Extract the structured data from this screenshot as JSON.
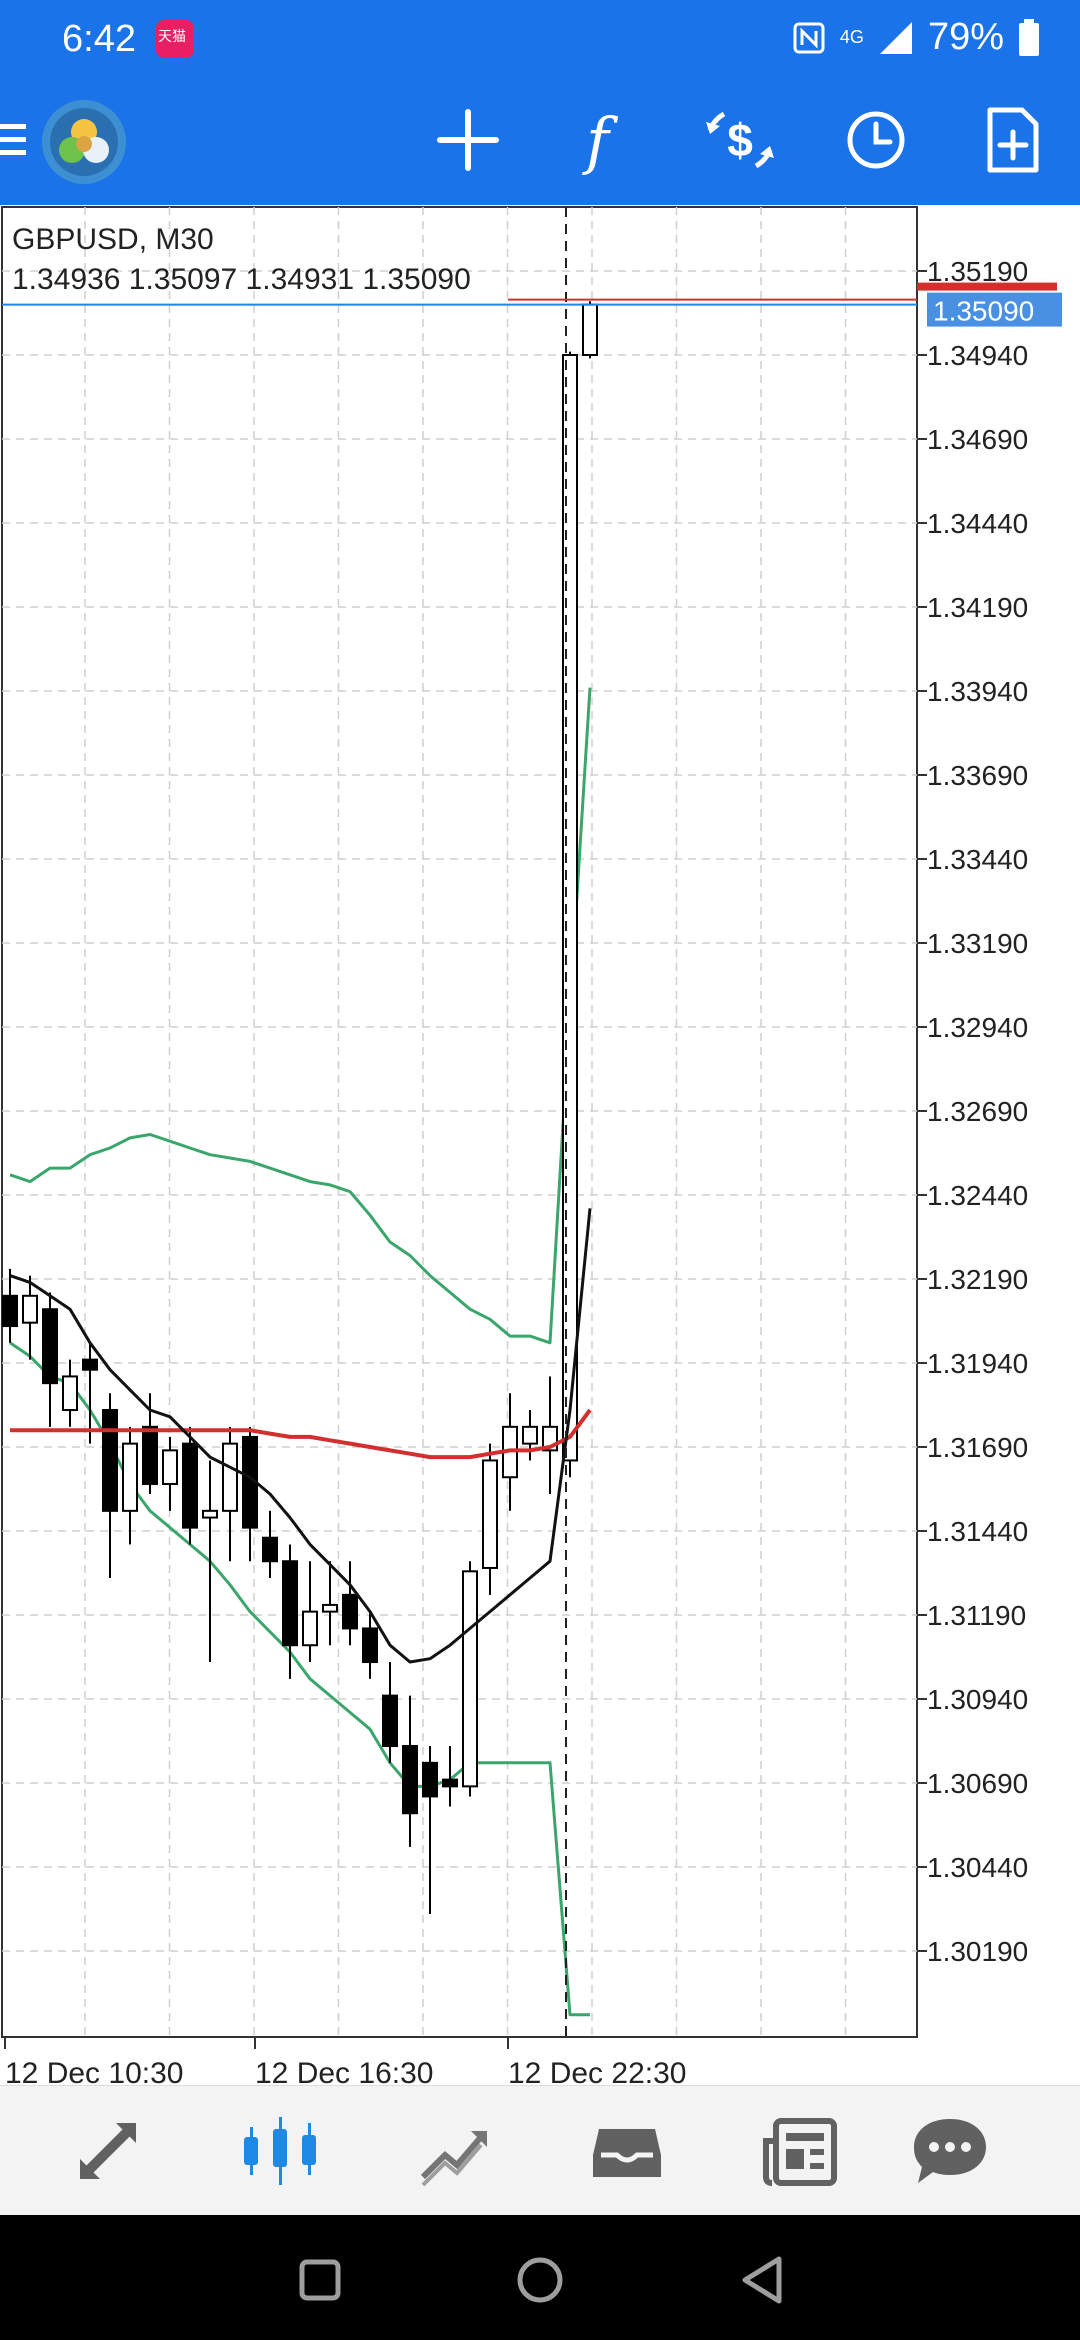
{
  "status_bar": {
    "time": "6:42",
    "app_badge_text": "天猫",
    "network": "4G",
    "battery": "79%"
  },
  "toolbar": {
    "menu_icon": "menu-icon",
    "buttons": [
      "crosshair-icon",
      "indicators-icon",
      "trade-icon",
      "timeframe-icon",
      "templates-icon"
    ],
    "indicators_label": "f"
  },
  "chart": {
    "symbol": "GBPUSD, M30",
    "ohlc": "1.34936 1.35097 1.34931 1.35090",
    "current_price": "1.35090",
    "colors": {
      "ma_red": "#d32f2f",
      "ma_black": "#111111",
      "bands": "#3aa66b",
      "bid_line": "#1e88e5",
      "price_badge": "#4a90e2"
    }
  },
  "chart_data": {
    "type": "candlestick",
    "price_ticks": [
      "1.35190",
      "1.34940",
      "1.34690",
      "1.34440",
      "1.34190",
      "1.33940",
      "1.33690",
      "1.33440",
      "1.33190",
      "1.32940",
      "1.32690",
      "1.32440",
      "1.32190",
      "1.31940",
      "1.31690",
      "1.31440",
      "1.31190",
      "1.30940",
      "1.30690",
      "1.30440",
      "1.30190"
    ],
    "time_labels": [
      "12 Dec 10:30",
      "12 Dec 16:30",
      "12 Dec 22:30"
    ],
    "candles": [
      {
        "o": 1.3214,
        "h": 1.3222,
        "l": 1.32,
        "c": 1.3205
      },
      {
        "o": 1.3206,
        "h": 1.322,
        "l": 1.3195,
        "c": 1.3214
      },
      {
        "o": 1.321,
        "h": 1.3215,
        "l": 1.3175,
        "c": 1.3188
      },
      {
        "o": 1.318,
        "h": 1.3195,
        "l": 1.3175,
        "c": 1.319
      },
      {
        "o": 1.3195,
        "h": 1.32,
        "l": 1.317,
        "c": 1.3192
      },
      {
        "o": 1.318,
        "h": 1.3185,
        "l": 1.313,
        "c": 1.315
      },
      {
        "o": 1.315,
        "h": 1.3175,
        "l": 1.314,
        "c": 1.317
      },
      {
        "o": 1.3175,
        "h": 1.3185,
        "l": 1.3155,
        "c": 1.3158
      },
      {
        "o": 1.3158,
        "h": 1.3172,
        "l": 1.315,
        "c": 1.3168
      },
      {
        "o": 1.317,
        "h": 1.3175,
        "l": 1.314,
        "c": 1.3145
      },
      {
        "o": 1.3148,
        "h": 1.3165,
        "l": 1.3105,
        "c": 1.315
      },
      {
        "o": 1.315,
        "h": 1.3175,
        "l": 1.3135,
        "c": 1.317
      },
      {
        "o": 1.3172,
        "h": 1.3175,
        "l": 1.3135,
        "c": 1.3145
      },
      {
        "o": 1.3142,
        "h": 1.315,
        "l": 1.313,
        "c": 1.3135
      },
      {
        "o": 1.3135,
        "h": 1.314,
        "l": 1.31,
        "c": 1.311
      },
      {
        "o": 1.311,
        "h": 1.3135,
        "l": 1.3105,
        "c": 1.312
      },
      {
        "o": 1.312,
        "h": 1.3135,
        "l": 1.311,
        "c": 1.3122
      },
      {
        "o": 1.3125,
        "h": 1.3135,
        "l": 1.311,
        "c": 1.3115
      },
      {
        "o": 1.3115,
        "h": 1.312,
        "l": 1.31,
        "c": 1.3105
      },
      {
        "o": 1.3095,
        "h": 1.3105,
        "l": 1.3075,
        "c": 1.308
      },
      {
        "o": 1.308,
        "h": 1.3095,
        "l": 1.305,
        "c": 1.306
      },
      {
        "o": 1.3075,
        "h": 1.308,
        "l": 1.303,
        "c": 1.3065
      },
      {
        "o": 1.307,
        "h": 1.308,
        "l": 1.3062,
        "c": 1.3068
      },
      {
        "o": 1.3068,
        "h": 1.3135,
        "l": 1.3065,
        "c": 1.3132
      },
      {
        "o": 1.3133,
        "h": 1.317,
        "l": 1.3125,
        "c": 1.3165
      },
      {
        "o": 1.316,
        "h": 1.3185,
        "l": 1.315,
        "c": 1.3175
      },
      {
        "o": 1.317,
        "h": 1.318,
        "l": 1.3165,
        "c": 1.3175
      },
      {
        "o": 1.3168,
        "h": 1.319,
        "l": 1.3155,
        "c": 1.3175
      },
      {
        "o": 1.3165,
        "h": 1.3495,
        "l": 1.316,
        "c": 1.3494
      },
      {
        "o": 1.3494,
        "h": 1.351,
        "l": 1.3493,
        "c": 1.3509
      }
    ],
    "ma_red": [
      1.3174,
      1.3174,
      1.3174,
      1.3174,
      1.3174,
      1.3174,
      1.3174,
      1.3174,
      1.3174,
      1.3174,
      1.3174,
      1.3174,
      1.3174,
      1.3173,
      1.3172,
      1.3172,
      1.3171,
      1.317,
      1.3169,
      1.3168,
      1.3167,
      1.3166,
      1.3166,
      1.3166,
      1.3167,
      1.3168,
      1.3168,
      1.3169,
      1.3172,
      1.318
    ],
    "ma_black": [
      1.322,
      1.3218,
      1.3214,
      1.321,
      1.32,
      1.3192,
      1.3186,
      1.318,
      1.3178,
      1.3172,
      1.3166,
      1.3163,
      1.316,
      1.3155,
      1.3148,
      1.314,
      1.3134,
      1.3128,
      1.312,
      1.311,
      1.3105,
      1.3106,
      1.311,
      1.3115,
      1.312,
      1.3125,
      1.313,
      1.3135,
      1.318,
      1.324
    ],
    "band_upper": [
      1.325,
      1.3248,
      1.3252,
      1.3252,
      1.3256,
      1.3258,
      1.3261,
      1.3262,
      1.326,
      1.3258,
      1.3256,
      1.3255,
      1.3254,
      1.3252,
      1.325,
      1.3248,
      1.3247,
      1.3245,
      1.3238,
      1.323,
      1.3226,
      1.322,
      1.3215,
      1.321,
      1.3207,
      1.3202,
      1.3202,
      1.32,
      1.33,
      1.3395
    ],
    "band_lower": [
      1.32,
      1.3196,
      1.319,
      1.3188,
      1.318,
      1.317,
      1.3158,
      1.315,
      1.3145,
      1.314,
      1.3135,
      1.3128,
      1.312,
      1.3114,
      1.3108,
      1.31,
      1.3095,
      1.309,
      1.3085,
      1.3075,
      1.3068,
      1.3068,
      1.307,
      1.3075,
      1.3075,
      1.3075,
      1.3075,
      1.3075,
      1.3,
      1.3
    ]
  },
  "bottom_nav": [
    "quotes-icon",
    "chart-icon",
    "trade-icon",
    "history-icon",
    "news-icon",
    "messages-icon"
  ],
  "system_nav": [
    "recents-button",
    "home-button",
    "back-button"
  ]
}
